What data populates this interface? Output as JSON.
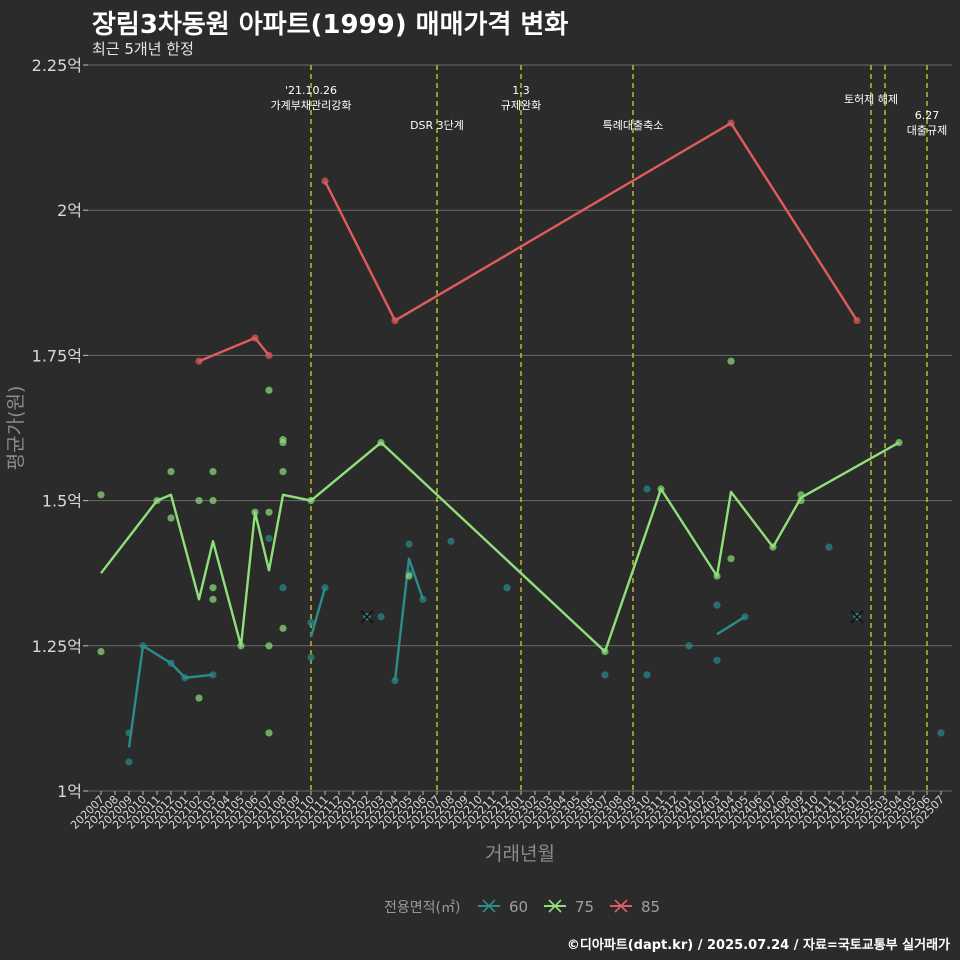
{
  "chart_data": {
    "type": "line",
    "title": "장림3차동원 아파트(1999) 매매가격 변화",
    "subtitle": "최근 5개년 한정",
    "xlabel": "거래년월",
    "ylabel": "평균가(원)",
    "caption": "©디아파트(dapt.kr) / 2025.07.24 / 자료=국토교통부 실거래가",
    "legend_title": "전용면적(㎡)",
    "legend_position": "bottom",
    "grid": true,
    "ylim": [
      1.0,
      2.25
    ],
    "yticks": [
      {
        "v": 1.0,
        "label": "1억"
      },
      {
        "v": 1.25,
        "label": "1.25억"
      },
      {
        "v": 1.5,
        "label": "1.5억"
      },
      {
        "v": 1.75,
        "label": "1.75억"
      },
      {
        "v": 2.0,
        "label": "2억"
      },
      {
        "v": 2.25,
        "label": "2.25억"
      }
    ],
    "x_categories": [
      "202007",
      "202008",
      "202009",
      "202010",
      "202011",
      "202012",
      "202101",
      "202102",
      "202103",
      "202104",
      "202105",
      "202106",
      "202107",
      "202108",
      "202109",
      "202110",
      "202111",
      "202112",
      "202201",
      "202202",
      "202203",
      "202204",
      "202205",
      "202206",
      "202207",
      "202208",
      "202209",
      "202210",
      "202211",
      "202212",
      "202301",
      "202302",
      "202303",
      "202304",
      "202305",
      "202306",
      "202307",
      "202308",
      "202309",
      "202310",
      "202311",
      "202312",
      "202401",
      "202402",
      "202403",
      "202404",
      "202405",
      "202406",
      "202407",
      "202408",
      "202409",
      "202410",
      "202411",
      "202412",
      "202501",
      "202502",
      "202503",
      "202504",
      "202505",
      "202506",
      "202507"
    ],
    "events": [
      {
        "x": "202110",
        "label": "'21.10.26\n가계부채관리강화"
      },
      {
        "x": "202207",
        "label": "DSR 3단계"
      },
      {
        "x": "202301",
        "label": "1.3\n규제완화"
      },
      {
        "x": "202309",
        "label": "특례대출축소"
      },
      {
        "x": "202502",
        "label": "토허제 해제"
      },
      {
        "x": "202503",
        "label": ""
      },
      {
        "x": "202506",
        "label": "6.27\n대출규제"
      }
    ],
    "series": [
      {
        "name": "60",
        "color": "#2a8c8c",
        "line_segments": [
          [
            [
              "202009",
              1.075
            ],
            [
              "202010",
              1.25
            ],
            [
              "202012",
              1.22
            ],
            [
              "202101",
              1.195
            ],
            [
              "202103",
              1.2
            ]
          ],
          [
            [
              "202110",
              1.265
            ],
            [
              "202111",
              1.35
            ]
          ],
          [
            [
              "202204",
              1.19
            ],
            [
              "202205",
              1.4
            ],
            [
              "202206",
              1.33
            ]
          ],
          [
            [
              "202403",
              1.27
            ],
            [
              "202405",
              1.3
            ]
          ]
        ],
        "points": [
          [
            "202009",
            1.1
          ],
          [
            "202009",
            1.05
          ],
          [
            "202010",
            1.25
          ],
          [
            "202012",
            1.22
          ],
          [
            "202101",
            1.195
          ],
          [
            "202103",
            1.2
          ],
          [
            "202107",
            1.435
          ],
          [
            "202108",
            1.35
          ],
          [
            "202110",
            1.29
          ],
          [
            "202110",
            1.23
          ],
          [
            "202111",
            1.35
          ],
          [
            "202203",
            1.3
          ],
          [
            "202204",
            1.19
          ],
          [
            "202205",
            1.425
          ],
          [
            "202205",
            1.375
          ],
          [
            "202206",
            1.33
          ],
          [
            "202208",
            1.43
          ],
          [
            "202212",
            1.35
          ],
          [
            "202307",
            1.2
          ],
          [
            "202310",
            1.52
          ],
          [
            "202310",
            1.2
          ],
          [
            "202401",
            1.25
          ],
          [
            "202403",
            1.32
          ],
          [
            "202403",
            1.225
          ],
          [
            "202405",
            1.3
          ],
          [
            "202411",
            1.42
          ],
          [
            "202507",
            1.1
          ]
        ],
        "cross_markers": [
          [
            "202202",
            1.3
          ],
          [
            "202501",
            1.3
          ]
        ]
      },
      {
        "name": "75",
        "color": "#8fe07a",
        "line_segments": [
          [
            [
              "202007",
              1.375
            ],
            [
              "202011",
              1.5
            ],
            [
              "202012",
              1.51
            ],
            [
              "202102",
              1.33
            ],
            [
              "202103",
              1.43
            ],
            [
              "202105",
              1.25
            ],
            [
              "202106",
              1.48
            ],
            [
              "202107",
              1.38
            ],
            [
              "202108",
              1.51
            ],
            [
              "202110",
              1.5
            ],
            [
              "202203",
              1.6
            ],
            [
              "202307",
              1.24
            ],
            [
              "202311",
              1.52
            ],
            [
              "202403",
              1.37
            ],
            [
              "202404",
              1.515
            ],
            [
              "202407",
              1.42
            ],
            [
              "202409",
              1.505
            ],
            [
              "202504",
              1.6
            ]
          ]
        ],
        "points": [
          [
            "202007",
            1.51
          ],
          [
            "202007",
            1.24
          ],
          [
            "202011",
            1.5
          ],
          [
            "202012",
            1.55
          ],
          [
            "202012",
            1.47
          ],
          [
            "202102",
            1.5
          ],
          [
            "202102",
            1.16
          ],
          [
            "202103",
            1.55
          ],
          [
            "202103",
            1.5
          ],
          [
            "202103",
            1.35
          ],
          [
            "202103",
            1.33
          ],
          [
            "202105",
            1.25
          ],
          [
            "202106",
            1.48
          ],
          [
            "202107",
            1.69
          ],
          [
            "202107",
            1.48
          ],
          [
            "202107",
            1.25
          ],
          [
            "202107",
            1.1
          ],
          [
            "202108",
            1.605
          ],
          [
            "202108",
            1.6
          ],
          [
            "202108",
            1.55
          ],
          [
            "202108",
            1.28
          ],
          [
            "202110",
            1.5
          ],
          [
            "202203",
            1.6
          ],
          [
            "202205",
            1.37
          ],
          [
            "202307",
            1.24
          ],
          [
            "202311",
            1.52
          ],
          [
            "202403",
            1.37
          ],
          [
            "202404",
            1.74
          ],
          [
            "202404",
            1.4
          ],
          [
            "202407",
            1.42
          ],
          [
            "202409",
            1.51
          ],
          [
            "202409",
            1.5
          ],
          [
            "202504",
            1.6
          ]
        ],
        "cross_markers": []
      },
      {
        "name": "85",
        "color": "#e05c5c",
        "line_segments": [
          [
            [
              "202102",
              1.74
            ],
            [
              "202106",
              1.78
            ],
            [
              "202107",
              1.75
            ]
          ],
          [
            [
              "202111",
              2.05
            ],
            [
              "202204",
              1.81
            ],
            [
              "202404",
              2.15
            ],
            [
              "202501",
              1.81
            ]
          ]
        ],
        "points": [
          [
            "202102",
            1.74
          ],
          [
            "202106",
            1.78
          ],
          [
            "202107",
            1.75
          ],
          [
            "202111",
            2.05
          ],
          [
            "202204",
            1.81
          ],
          [
            "202404",
            2.15
          ],
          [
            "202501",
            1.81
          ]
        ],
        "cross_markers": []
      }
    ]
  }
}
